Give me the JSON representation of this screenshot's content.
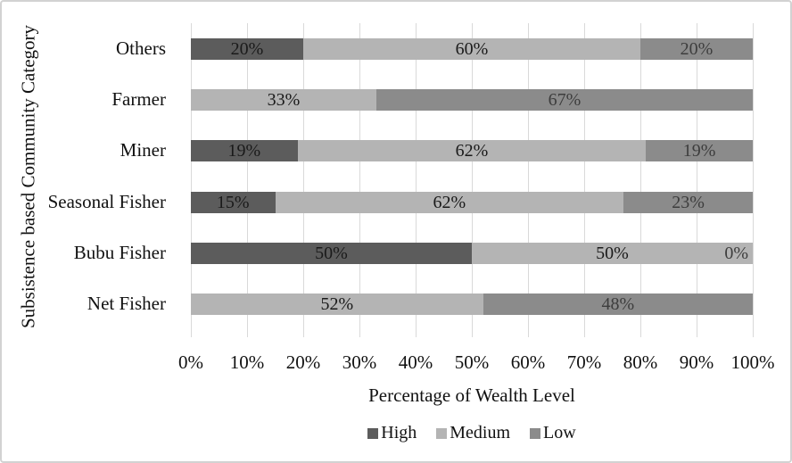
{
  "chart_data": {
    "type": "bar",
    "orientation": "horizontal",
    "stacked": true,
    "stacked_total": 100,
    "title": "",
    "xlabel": "Percentage of Wealth Level",
    "ylabel": "Subsistence based Community Category",
    "xlim": [
      0,
      100
    ],
    "x_tick_labels": [
      "0%",
      "10%",
      "20%",
      "30%",
      "40%",
      "50%",
      "60%",
      "70%",
      "80%",
      "90%",
      "100%"
    ],
    "grid": "vertical gridlines on, light gray",
    "legend_position": "bottom",
    "categories": [
      "Others",
      "Farmer",
      "Miner",
      "Seasonal Fisher",
      "Bubu Fisher",
      "Net Fisher"
    ],
    "series": [
      {
        "name": "High",
        "color": "#5c5c5c",
        "label_color": "#1a1a1a",
        "values": [
          20,
          0,
          19,
          15,
          50,
          0
        ]
      },
      {
        "name": "Medium",
        "color": "#b4b4b4",
        "label_color": "#1a1a1a",
        "values": [
          60,
          33,
          62,
          62,
          50,
          52
        ]
      },
      {
        "name": "Low",
        "color": "#8b8b8b",
        "label_color": "#3d3d3d",
        "values": [
          20,
          67,
          19,
          23,
          0,
          48
        ]
      }
    ],
    "data_label_format": "{value}%"
  },
  "colors": {
    "background": "#ffffff",
    "gridline": "#d9d9d9",
    "figure_border": "#d2d2d2"
  }
}
